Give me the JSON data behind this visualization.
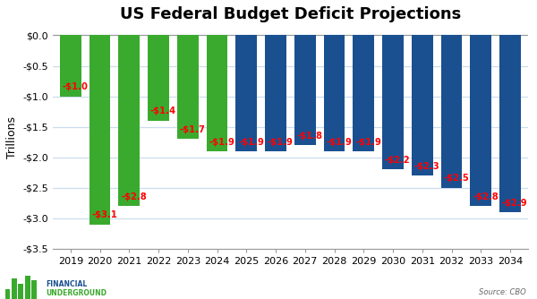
{
  "title": "US Federal Budget Deficit Projections",
  "years": [
    2019,
    2020,
    2021,
    2022,
    2023,
    2024,
    2025,
    2026,
    2027,
    2028,
    2029,
    2030,
    2031,
    2032,
    2033,
    2034
  ],
  "values": [
    -1.0,
    -3.1,
    -2.8,
    -1.4,
    -1.7,
    -1.9,
    -1.9,
    -1.9,
    -1.8,
    -1.9,
    -1.9,
    -2.2,
    -2.3,
    -2.5,
    -2.8,
    -2.9
  ],
  "labels": [
    "-$1.0",
    "-$3.1",
    "-$2.8",
    "-$1.4",
    "-$1.7",
    "-$1.9",
    "-$1.9",
    "-$1.9",
    "-$1.8",
    "-$1.9",
    "-$1.9",
    "-$2.2",
    "-$2.3",
    "-$2.5",
    "-$2.8",
    "-$2.9"
  ],
  "colors": [
    "#3aaa2e",
    "#3aaa2e",
    "#3aaa2e",
    "#3aaa2e",
    "#3aaa2e",
    "#3aaa2e",
    "#1a5090",
    "#1a5090",
    "#1a5090",
    "#1a5090",
    "#1a5090",
    "#1a5090",
    "#1a5090",
    "#1a5090",
    "#1a5090",
    "#1a5090"
  ],
  "ylabel": "Trillions",
  "ylim": [
    -3.5,
    0.15
  ],
  "yticks": [
    0.0,
    -0.5,
    -1.0,
    -1.5,
    -2.0,
    -2.5,
    -3.0,
    -3.5
  ],
  "ytick_labels": [
    "$0.0",
    "-$0.5",
    "-$1.0",
    "-$1.5",
    "-$2.0",
    "-$2.5",
    "-$3.0",
    "-$3.5"
  ],
  "bg_color": "#ffffff",
  "grid_color": "#ccddee",
  "label_color": "#ff0000",
  "source_text": "Source: CBO",
  "title_fontsize": 13,
  "label_fontsize": 7.2,
  "axis_fontsize": 8,
  "logo_text1": "FINANCIAL",
  "logo_text2": "UNDERGROUND"
}
